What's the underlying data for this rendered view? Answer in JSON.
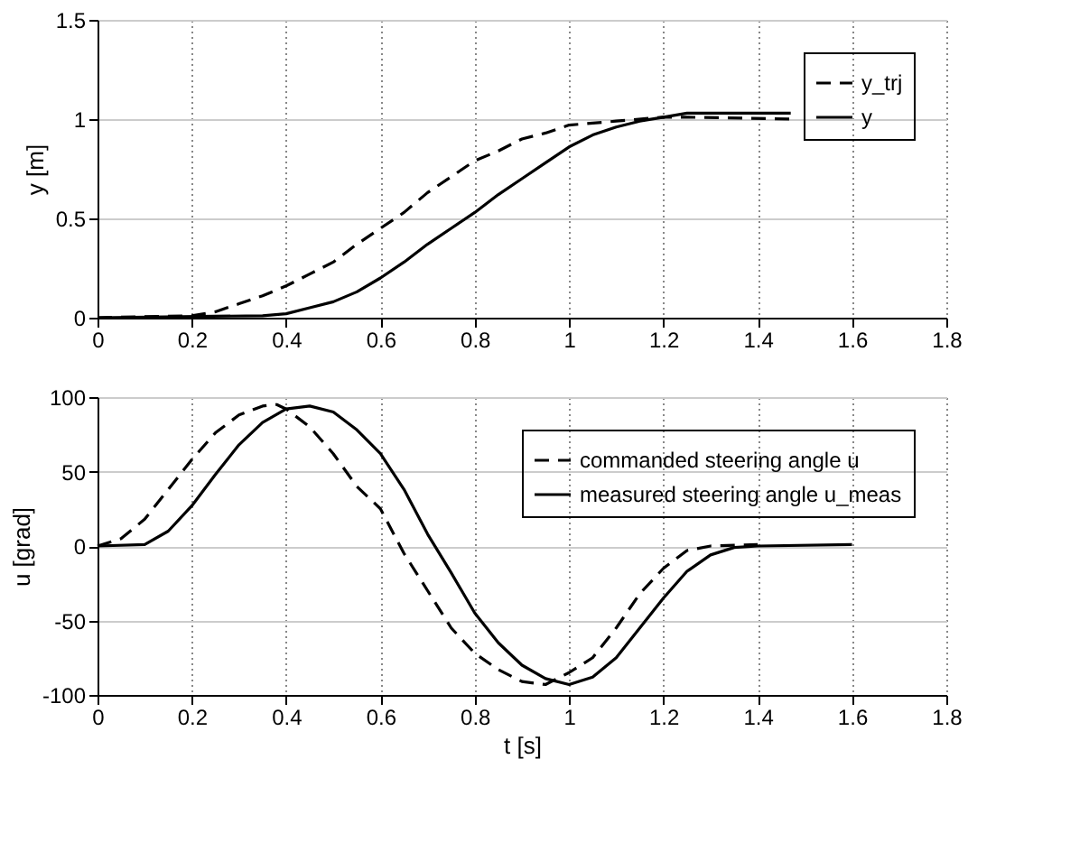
{
  "chart_data": [
    {
      "type": "line",
      "ylabel": "y [m]",
      "xlim": [
        0,
        1.8
      ],
      "xticks": [
        0,
        0.2,
        0.4,
        0.6,
        0.8,
        1,
        1.2,
        1.4,
        1.6,
        1.8
      ],
      "ylim": [
        0,
        1.5
      ],
      "yticks": [
        0,
        0.5,
        1,
        1.5
      ],
      "grid": true,
      "legend": "top right",
      "series": [
        {
          "name": "y_trj",
          "color": "#000000",
          "line_style": "dashed",
          "x": [
            0,
            0.2,
            0.25,
            0.3,
            0.35,
            0.4,
            0.45,
            0.5,
            0.55,
            0.6,
            0.65,
            0.7,
            0.75,
            0.8,
            0.85,
            0.9,
            0.95,
            1.0,
            1.1,
            1.2,
            1.25,
            1.47
          ],
          "values": [
            0,
            0.01,
            0.03,
            0.07,
            0.11,
            0.16,
            0.22,
            0.28,
            0.37,
            0.45,
            0.53,
            0.63,
            0.71,
            0.79,
            0.84,
            0.9,
            0.93,
            0.97,
            0.99,
            1.01,
            1.01,
            1.0
          ]
        },
        {
          "name": "y",
          "color": "#000000",
          "line_style": "solid",
          "x": [
            0,
            0.35,
            0.4,
            0.45,
            0.5,
            0.55,
            0.6,
            0.65,
            0.7,
            0.75,
            0.8,
            0.85,
            0.9,
            0.95,
            1.0,
            1.05,
            1.1,
            1.15,
            1.2,
            1.25,
            1.47
          ],
          "values": [
            0,
            0.01,
            0.02,
            0.05,
            0.08,
            0.13,
            0.2,
            0.28,
            0.37,
            0.45,
            0.53,
            0.62,
            0.7,
            0.78,
            0.86,
            0.92,
            0.96,
            0.99,
            1.01,
            1.03,
            1.03
          ]
        }
      ]
    },
    {
      "type": "line",
      "xlabel": "t [s]",
      "ylabel": "u [grad]",
      "xlim": [
        0,
        1.8
      ],
      "xticks": [
        0,
        0.2,
        0.4,
        0.6,
        0.8,
        1,
        1.2,
        1.4,
        1.6,
        1.8
      ],
      "ylim": [
        -100,
        100
      ],
      "yticks": [
        -100,
        -50,
        0,
        50,
        100
      ],
      "grid": true,
      "legend": "top right",
      "series": [
        {
          "name": "commanded steering angle u",
          "color": "#000000",
          "line_style": "dashed",
          "x": [
            0,
            0.05,
            0.1,
            0.15,
            0.2,
            0.25,
            0.3,
            0.35,
            0.38,
            0.4,
            0.45,
            0.5,
            0.55,
            0.6,
            0.65,
            0.7,
            0.75,
            0.8,
            0.85,
            0.9,
            0.95,
            1.0,
            1.05,
            1.1,
            1.15,
            1.2,
            1.25,
            1.3,
            1.4
          ],
          "values": [
            0,
            5,
            18,
            38,
            58,
            76,
            88,
            94,
            95,
            92,
            80,
            62,
            40,
            25,
            -5,
            -30,
            -55,
            -72,
            -83,
            -91,
            -93,
            -85,
            -75,
            -55,
            -32,
            -15,
            -3,
            0,
            1
          ]
        },
        {
          "name": "measured steering angle u_meas",
          "color": "#000000",
          "line_style": "solid",
          "x": [
            0,
            0.1,
            0.15,
            0.2,
            0.25,
            0.3,
            0.35,
            0.4,
            0.45,
            0.5,
            0.55,
            0.6,
            0.65,
            0.7,
            0.75,
            0.8,
            0.85,
            0.9,
            0.95,
            1.0,
            1.05,
            1.1,
            1.15,
            1.2,
            1.25,
            1.3,
            1.35,
            1.4,
            1.6
          ],
          "values": [
            0,
            1,
            10,
            27,
            48,
            68,
            83,
            92,
            94,
            90,
            78,
            62,
            38,
            8,
            -18,
            -45,
            -65,
            -80,
            -89,
            -93,
            -88,
            -75,
            -55,
            -35,
            -17,
            -6,
            -1,
            0,
            1
          ]
        }
      ]
    }
  ]
}
